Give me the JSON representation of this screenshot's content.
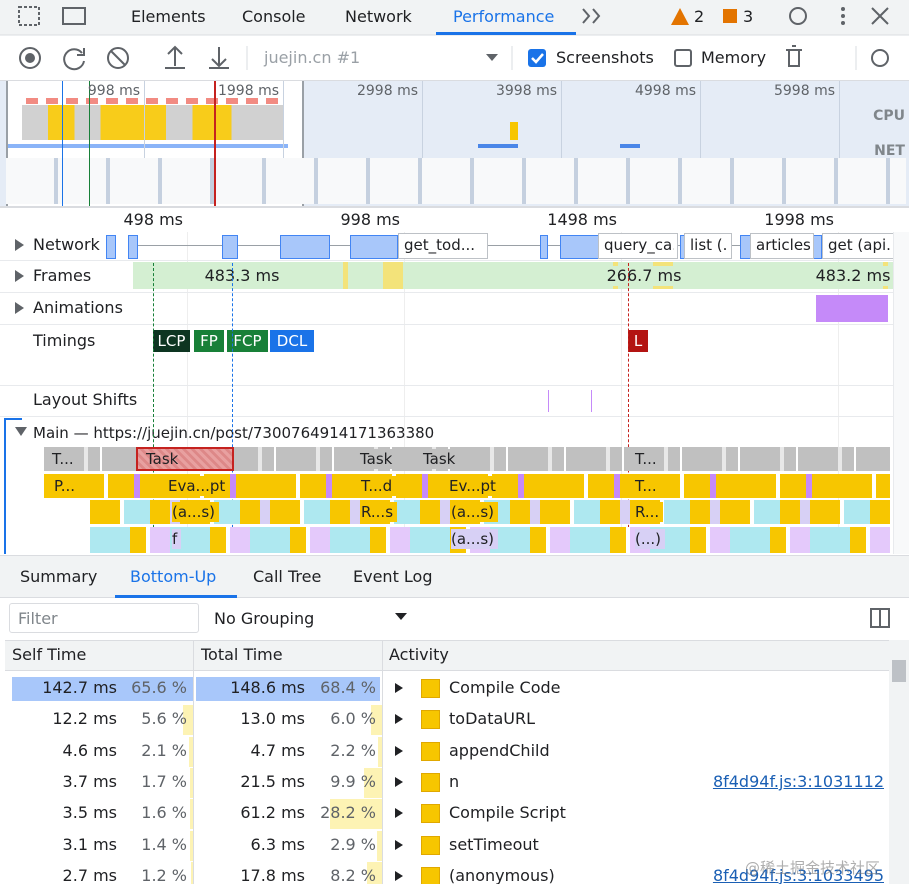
{
  "tabs": {
    "items": [
      "Elements",
      "Console",
      "Network",
      "Performance"
    ],
    "warnings": 2,
    "issues": 3
  },
  "toolbar": {
    "recording": "juejin.cn #1",
    "screenshots": "Screenshots",
    "memory": "Memory"
  },
  "overview": {
    "times": [
      "998 ms",
      "1998 ms",
      "2998 ms",
      "3998 ms",
      "4998 ms",
      "5998 ms"
    ],
    "cpu": "CPU",
    "net": "NET"
  },
  "timeline": {
    "ruler": [
      "498 ms",
      "998 ms",
      "1498 ms",
      "1998 ms"
    ],
    "tracks": {
      "network": "Network",
      "frames": "Frames",
      "animations": "Animations",
      "timings": "Timings",
      "layout_shifts": "Layout Shifts",
      "main": "Main — https://juejin.cn/post/7300764914171363380"
    },
    "network_items": [
      "get_tod...",
      "query_ca...",
      "list (...",
      "articles",
      "get (api..."
    ],
    "frame_durations": [
      "483.3 ms",
      "266.7 ms",
      "483.2 ms"
    ],
    "markers": [
      "LCP",
      "FP",
      "FCP",
      "DCL",
      "L"
    ],
    "flame": [
      "T...",
      "Task",
      "Task",
      "Task",
      "T...",
      "P...",
      "Eva...pt",
      "T...d",
      "Ev...pt",
      "T...",
      "(a...s)",
      "R...s",
      "(a...s)",
      "R...",
      "f",
      "(a...s)",
      "(...)"
    ]
  },
  "panel": {
    "tabs": [
      "Summary",
      "Bottom-Up",
      "Call Tree",
      "Event Log"
    ],
    "filter": "Filter",
    "grouping": "No Grouping",
    "headers": [
      "Self Time",
      "Total Time",
      "Activity"
    ],
    "rows": [
      {
        "self": "142.7 ms",
        "self_pct": "65.6 %",
        "total": "148.6 ms",
        "total_pct": "68.4 %",
        "activity": "Compile Code"
      },
      {
        "self": "12.2 ms",
        "self_pct": "5.6 %",
        "total": "13.0 ms",
        "total_pct": "6.0 %",
        "activity": "toDataURL"
      },
      {
        "self": "4.6 ms",
        "self_pct": "2.1 %",
        "total": "4.7 ms",
        "total_pct": "2.2 %",
        "activity": "appendChild"
      },
      {
        "self": "3.7 ms",
        "self_pct": "1.7 %",
        "total": "21.5 ms",
        "total_pct": "9.9 %",
        "activity": "n",
        "link": "8f4d94f.js:3:1031112"
      },
      {
        "self": "3.5 ms",
        "self_pct": "1.6 %",
        "total": "61.2 ms",
        "total_pct": "28.2 %",
        "activity": "Compile Script"
      },
      {
        "self": "3.1 ms",
        "self_pct": "1.4 %",
        "total": "6.3 ms",
        "total_pct": "2.9 %",
        "activity": "setTimeout"
      },
      {
        "self": "2.7 ms",
        "self_pct": "1.2 %",
        "total": "17.8 ms",
        "total_pct": "8.2 %",
        "activity": "(anonymous)",
        "link": "8f4d94f.js:3:1033495"
      }
    ]
  },
  "watermark": "@稀土掘金技术社区"
}
